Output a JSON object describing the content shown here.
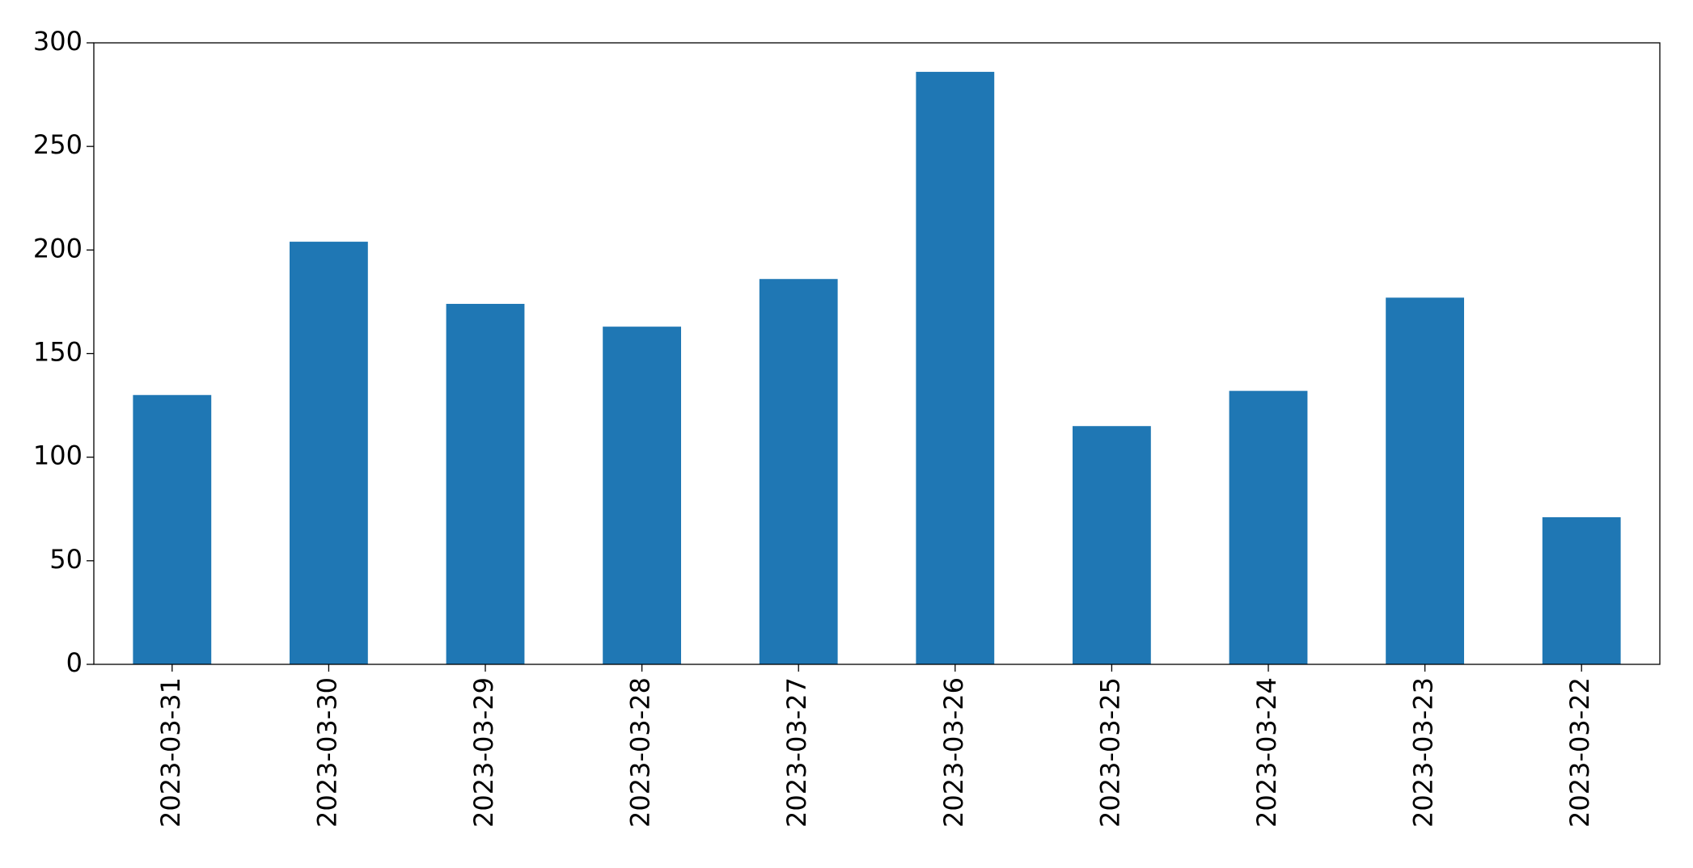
{
  "chart_data": {
    "type": "bar",
    "categories": [
      "2023-03-31",
      "2023-03-30",
      "2023-03-29",
      "2023-03-28",
      "2023-03-27",
      "2023-03-26",
      "2023-03-25",
      "2023-03-24",
      "2023-03-23",
      "2023-03-22"
    ],
    "values": [
      130,
      204,
      174,
      163,
      186,
      286,
      115,
      132,
      177,
      71
    ],
    "color": "#1f77b4",
    "ylim": [
      0,
      300
    ],
    "yticks": [
      0,
      50,
      100,
      150,
      200,
      250,
      300
    ],
    "grid": false
  }
}
